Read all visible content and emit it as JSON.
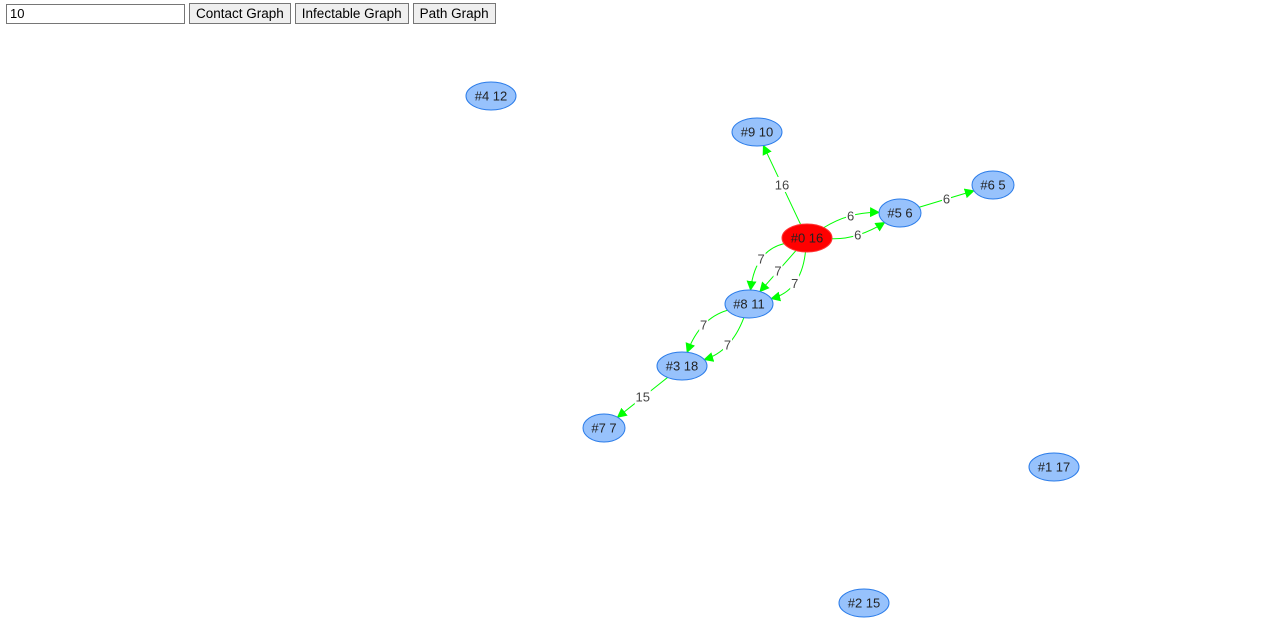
{
  "toolbar": {
    "input_value": "10",
    "contact_label": "Contact Graph",
    "infectable_label": "Infectable Graph",
    "path_label": "Path Graph"
  },
  "colors": {
    "node_fill": "#97c2fc",
    "node_border": "#2b7ce9",
    "highlight_fill": "#ff0000",
    "highlight_border": "#ff3333",
    "edge": "#00ff00"
  },
  "nodes": [
    {
      "id": 0,
      "label": "#0 16",
      "highlight": true
    },
    {
      "id": 1,
      "label": "#1 17"
    },
    {
      "id": 2,
      "label": "#2 15"
    },
    {
      "id": 3,
      "label": "#3 18"
    },
    {
      "id": 4,
      "label": "#4 12"
    },
    {
      "id": 5,
      "label": "#5 6"
    },
    {
      "id": 6,
      "label": "#6 5"
    },
    {
      "id": 7,
      "label": "#7 7"
    },
    {
      "id": 8,
      "label": "#8 11"
    },
    {
      "id": 9,
      "label": "#9 10"
    }
  ],
  "edges": [
    {
      "from": 0,
      "to": 9,
      "label": "16"
    },
    {
      "from": 0,
      "to": 5,
      "label": "6"
    },
    {
      "from": 0,
      "to": 5,
      "label": "6"
    },
    {
      "from": 5,
      "to": 6,
      "label": "6"
    },
    {
      "from": 0,
      "to": 8,
      "label": "7"
    },
    {
      "from": 0,
      "to": 8,
      "label": "7"
    },
    {
      "from": 0,
      "to": 8,
      "label": "7"
    },
    {
      "from": 8,
      "to": 3,
      "label": "7"
    },
    {
      "from": 8,
      "to": 3,
      "label": "7"
    },
    {
      "from": 3,
      "to": 7,
      "label": "15"
    }
  ]
}
